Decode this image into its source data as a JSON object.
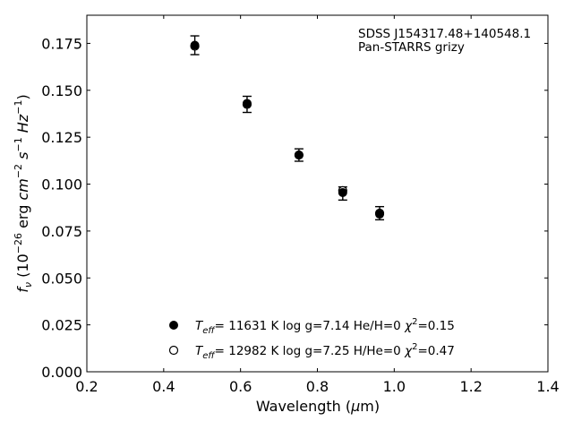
{
  "chart_data": {
    "type": "scatter",
    "title": "",
    "xlabel": "Wavelength (μm)",
    "ylabel": "f_ν (10^-26 erg cm^-2 s^-1 Hz^-1)",
    "xlim": [
      0.2,
      1.4
    ],
    "ylim": [
      0.0,
      0.19
    ],
    "xticks": [
      "0.2",
      "0.4",
      "0.6",
      "0.8",
      "1.0",
      "1.2",
      "1.4"
    ],
    "yticks": [
      "0.000",
      "0.025",
      "0.050",
      "0.075",
      "0.100",
      "0.125",
      "0.150",
      "0.175"
    ],
    "annotations": [
      "SDSS J154317.48+140548.1",
      "Pan-STARRS grizy"
    ],
    "series": [
      {
        "name": "Teff= 11631 K  log g=7.14  He/H=0  χ²=0.15",
        "marker": "filled-circle",
        "x": [
          0.481,
          0.617,
          0.752,
          0.866,
          0.962
        ],
        "y": [
          0.174,
          0.143,
          0.1155,
          0.0955,
          0.084
        ]
      },
      {
        "name": "Teff= 12982 K  log g=7.25  H/He=0  χ²=0.47",
        "marker": "open-circle",
        "x": [
          0.481,
          0.617,
          0.752,
          0.866,
          0.962
        ],
        "y": [
          0.1735,
          0.1425,
          0.1155,
          0.0965,
          0.0845
        ]
      }
    ],
    "observed": {
      "x": [
        0.481,
        0.617,
        0.752,
        0.866,
        0.962
      ],
      "y": [
        0.174,
        0.1425,
        0.1155,
        0.095,
        0.0845
      ],
      "err": [
        0.005,
        0.0043,
        0.0033,
        0.0035,
        0.0035
      ]
    },
    "legend_position": "bottom-center",
    "grid": false
  }
}
